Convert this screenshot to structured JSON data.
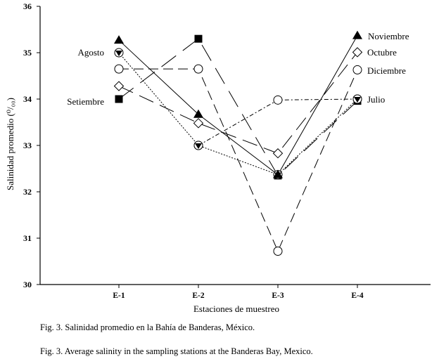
{
  "chart_data": {
    "type": "line",
    "xlabel": "Estaciones de muestreo",
    "ylabel": "Salinidad promedio (⁰/₀₀)",
    "ylim": [
      30,
      36
    ],
    "yticks": [
      30,
      31,
      32,
      33,
      34,
      35,
      36
    ],
    "categories": [
      "E-1",
      "E-2",
      "E-3",
      "E-4"
    ],
    "grid": false,
    "series": [
      {
        "name": "Noviembre",
        "marker": "triangle-filled",
        "values": [
          35.27,
          33.67,
          32.37,
          35.37
        ]
      },
      {
        "name": "Octubre",
        "marker": "diamond-open",
        "values": [
          34.28,
          33.48,
          32.83,
          35.01
        ]
      },
      {
        "name": "Diciembre",
        "marker": "circle-open",
        "values": [
          34.65,
          34.65,
          30.72,
          34.63
        ]
      },
      {
        "name": "Julio",
        "marker": "circle-open",
        "values": [
          null,
          33.0,
          33.98,
          34.0
        ]
      },
      {
        "name": "Agosto",
        "marker": "circle-open-triangle",
        "values": [
          35.0,
          33.0,
          32.37,
          34.0
        ]
      },
      {
        "name": "Setiembre",
        "marker": "square-filled",
        "values": [
          34.0,
          35.3,
          32.35,
          33.96
        ]
      }
    ]
  },
  "captions": {
    "spanish": "Fig. 3. Salinidad promedio en la Bahía de Banderas, México.",
    "english": "Fig. 3. Average salinity in the sampling stations at the Banderas Bay, Mexico."
  }
}
